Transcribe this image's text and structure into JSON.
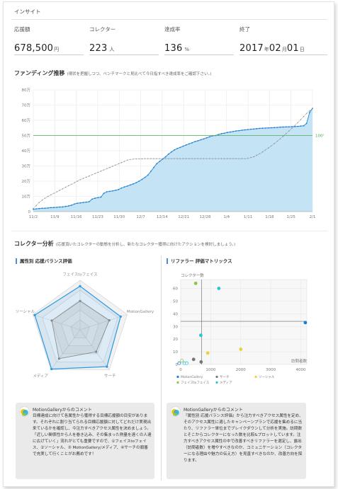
{
  "page": {
    "section_title": "インサイト"
  },
  "kpis": [
    {
      "label": "応援額",
      "value": "678,500",
      "unit": "円"
    },
    {
      "label": "コレクター",
      "value": "223",
      "unit": "人"
    },
    {
      "label": "達成率",
      "value": "136",
      "unit": "%"
    },
    {
      "label": "終了",
      "year": "2017",
      "month": "02",
      "day": "01",
      "year_unit": "年",
      "month_unit": "月",
      "day_unit": "日"
    }
  ],
  "funding": {
    "title": "ファンディング推移",
    "note": "(現状を把握しつつ、ベンチマークと見比べて今日指すべき達成率をご確認下さい。)",
    "goal_label": "100%",
    "chart_data": {
      "type": "area",
      "y_ticks": [
        "80万",
        "70万",
        "60万",
        "50万",
        "40万",
        "30万",
        "20万",
        "10万",
        "0"
      ],
      "x_ticks": [
        "11/2",
        "11/9",
        "11/16",
        "11/23",
        "11/30",
        "12/7",
        "12/14",
        "12/21",
        "12/28",
        "1/4",
        "1/11",
        "1/18",
        "1/25",
        "2/1"
      ],
      "ylim": [
        0,
        800000
      ],
      "goal": 500000,
      "series": [
        {
          "values": [
            15000,
            18000,
            20000,
            22000,
            22000,
            24000,
            26000,
            27000,
            28000,
            30000,
            31000,
            34000,
            37000,
            42000,
            50000,
            55000,
            57000,
            60000,
            62000,
            65000,
            82000,
            88000,
            92000,
            95000,
            120000,
            130000,
            133000,
            136000,
            140000,
            145000,
            155000,
            162000,
            168000,
            175000,
            182000,
            190000,
            200000,
            212000,
            225000,
            240000,
            265000,
            290000,
            315000,
            330000,
            345000,
            360000,
            378000,
            392000,
            405000,
            415000,
            422000,
            430000,
            438000,
            445000,
            452000,
            460000,
            465000,
            472000,
            478000,
            485000,
            492000,
            498000,
            500000,
            506000,
            512000,
            515000,
            520000,
            523000,
            526000,
            530000,
            532000,
            535000,
            537000,
            539000,
            541000,
            543000,
            545000,
            547000,
            548000,
            549000,
            550000,
            551000,
            552000,
            553000,
            555000,
            556000,
            557000,
            557000,
            558000,
            559000,
            560000,
            562000,
            564000,
            580000,
            650000,
            678500
          ]
        },
        {
          "values": [
            20000,
            40000,
            60000,
            75000,
            88000,
            100000,
            110000,
            120000,
            130000,
            140000,
            150000,
            160000,
            170000,
            180000,
            190000,
            200000,
            210000,
            218000,
            226000,
            234000,
            242000,
            250000,
            258000,
            266000,
            274000,
            282000,
            290000,
            298000,
            306000,
            314000,
            322000,
            330000,
            338000,
            342000,
            345000,
            346000,
            347000,
            347000,
            348000,
            348000,
            348000,
            348000,
            348000,
            348000,
            348000,
            348000,
            348000,
            348000,
            348000,
            348000,
            348000,
            348000,
            348000,
            348000,
            348000,
            348000,
            348000,
            348000,
            348000,
            348000,
            348000,
            348000,
            348000,
            348000,
            348000,
            348000,
            348000,
            348000,
            348000,
            348000,
            348000,
            348000,
            348000,
            350000,
            355000,
            360000,
            370000,
            380000,
            392000,
            405000,
            418000,
            432000,
            447000,
            462000,
            478000,
            495000,
            512000,
            530000,
            548000,
            566000,
            585000,
            605000,
            625000,
            645000,
            662000,
            678500
          ]
        }
      ]
    }
  },
  "collector": {
    "title": "コレクター分析",
    "note": "(応援頂いたコレクターの動態を分析し、新たなコレクター獲得に向けたアクションを検討しましょう。)",
    "radar": {
      "title": "属性別 応援バランス評価",
      "chart_data": {
        "type": "radar",
        "axes": [
          "フェイスtoフェイス",
          "MotionGallery",
          "サーチ",
          "メディア",
          "ソーシャル"
        ],
        "series": [
          {
            "values": [
              0.88,
              0.86,
              0.92,
              0.98,
              0.96
            ]
          },
          {
            "values": [
              0.58,
              0.62,
              0.55,
              0.72,
              0.6
            ]
          }
        ]
      }
    },
    "matrix": {
      "title": "リファラー 評価マトリックス",
      "chart_data": {
        "type": "scatter",
        "ylabel": "コレクター数",
        "xlabel": "訪問者数",
        "y_ticks": [
          60,
          50,
          40,
          30,
          20,
          10,
          0
        ],
        "x_ticks": [
          0,
          1000,
          2000,
          3000,
          4000
        ],
        "xlim": [
          0,
          4200
        ],
        "ylim": [
          0,
          67
        ],
        "avg_x": 700,
        "avg_y": 34,
        "points": [
          {
            "series": "MotionGallery",
            "x": 4150,
            "y": 33
          },
          {
            "series": "フェイスtoフェイス",
            "x": 500,
            "y": 64
          },
          {
            "series": "メディア",
            "x": 1270,
            "y": 60
          },
          {
            "series": "メディア",
            "x": 670,
            "y": 23
          },
          {
            "series": "ソーシャル",
            "x": 2000,
            "y": 12
          },
          {
            "series": "ソーシャル",
            "x": 900,
            "y": 9
          },
          {
            "series": "サーチ",
            "x": 430,
            "y": 4
          },
          {
            "series": "サーチ",
            "x": 680,
            "y": 2
          },
          {
            "series": "フェイスtoフェイス",
            "x": 40,
            "y": 3
          },
          {
            "series": "メディア",
            "x": 120,
            "y": 1
          },
          {
            "series": "メディア",
            "x": 200,
            "y": 1
          },
          {
            "series": "MotionGallery",
            "x": -50,
            "y": 1
          }
        ],
        "legend": [
          "MotionGallery",
          "サーチ",
          "ソーシャル",
          "フェイスtoフェイス",
          "メディア"
        ],
        "colors": {
          "MotionGallery": "#1a7fd4",
          "サーチ": "#777777",
          "ソーシャル": "#e8d43a",
          "フェイスtoフェイス": "#8cc63f",
          "メディア": "#2bc4d8"
        }
      }
    }
  },
  "comments": [
    {
      "title": "MotionGalleryからのコメント",
      "body": "目標達成に向けて各属性から獲得する目標応援額の目安があります。それぞれに割り当てられる目標応援額に対してどれだけ実現出来ているかを確認し、今注力すべきアクセス属性を決めましょう。「近しい関係性から人を巻き込み、その集まった熱量を遠くの人達に広げていく」流れがとても重要ですので、①フェイスtoフェイス、②ソーシャル、③ MotionGallery/メディア、④サーチの順番で充実して行くことがお薦めです！"
    },
    {
      "title": "MotionGalleryからのコメント",
      "body": "『属性別 応援バランス評価』から注力すべきアクセス属性を定め、そのアクセス属性に適したキャンペーンプランで応援を集めるに当たり、リファラー単位までブレイクダウンして分析を実施。訪問数とそこからコレクターになった数を比較&プロットしています。注力すべきアクセス属性の中で改善すべきリファラーを選定し、露出（訪問者数）を増やすべきなのか、コミュニケーション（コレクターになる理由や魅力の伝え方）を見直すべきなのか、改善方向を探ります。"
    }
  ]
}
